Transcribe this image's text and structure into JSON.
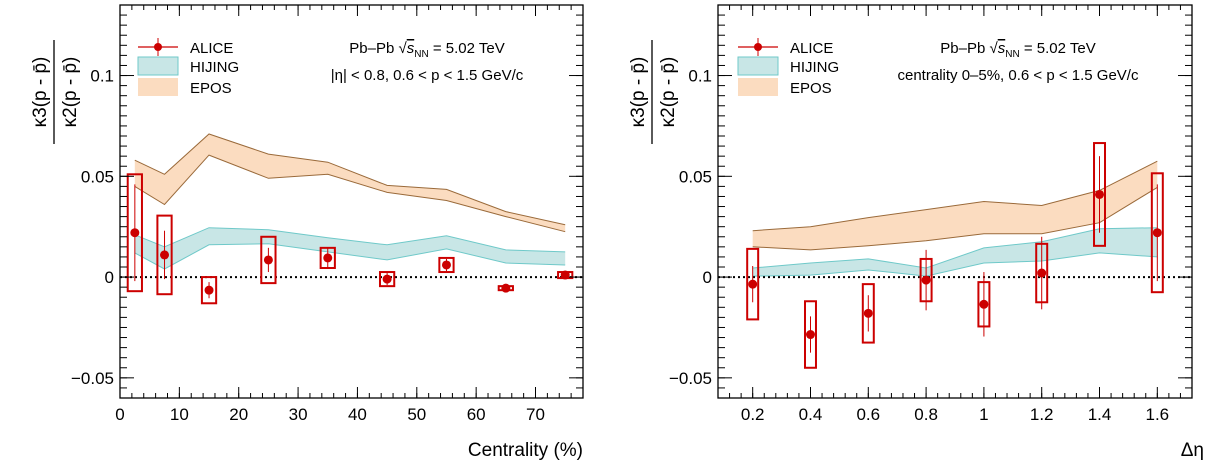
{
  "chart_data": [
    {
      "type": "scatter",
      "x_title": "Centrality (%)",
      "y_title": {
        "numerator": "κ3(p - p̄)",
        "denominator": "κ2(p - p̄)"
      },
      "xlim": [
        0,
        78
      ],
      "ylim": [
        -0.06,
        0.135
      ],
      "x_ticks": [
        0,
        10,
        20,
        30,
        40,
        50,
        60,
        70
      ],
      "y_ticks": [
        {
          "v": -0.05,
          "label": "−0.05"
        },
        {
          "v": 0,
          "label": "0"
        },
        {
          "v": 0.05,
          "label": "0.05"
        },
        {
          "v": 0.1,
          "label": "0.1"
        }
      ],
      "annotations": {
        "system": "Pb–Pb",
        "energy": "√s_NN = 5.02 TeV",
        "cuts": "|η| < 0.8, 0.6 < p < 1.5 GeV/c"
      },
      "legend": {
        "alice": "ALICE",
        "hijing": "HIJING",
        "epos": "EPOS"
      },
      "series": [
        {
          "name": "ALICE",
          "x": [
            2.5,
            7.5,
            15,
            25,
            35,
            45,
            55,
            65,
            75
          ],
          "y": [
            0.022,
            0.011,
            -0.0065,
            0.0085,
            0.0095,
            -0.001,
            0.006,
            -0.0055,
            0.001
          ],
          "stat_err": [
            0.024,
            0.012,
            0.004,
            0.006,
            0.005,
            0.003,
            0.003,
            0.001,
            0.0015
          ],
          "syst_err": [
            0.029,
            0.0195,
            0.0065,
            0.0115,
            0.005,
            0.0035,
            0.0035,
            0.001,
            0.0015
          ],
          "box_half_width": [
            1.2,
            1.2,
            1.2,
            1.2,
            1.2,
            1.2,
            1.2,
            1.2,
            1.2
          ]
        },
        {
          "name": "HIJING",
          "x": [
            2.5,
            7.5,
            15,
            25,
            35,
            45,
            55,
            65,
            75
          ],
          "low": [
            0.012,
            0.004,
            0.016,
            0.0165,
            0.0125,
            0.0085,
            0.014,
            0.007,
            0.006
          ],
          "high": [
            0.021,
            0.015,
            0.0245,
            0.0235,
            0.0195,
            0.016,
            0.0205,
            0.0135,
            0.0125
          ]
        },
        {
          "name": "EPOS",
          "x": [
            2.5,
            7.5,
            15,
            25,
            35,
            45,
            55,
            65,
            75
          ],
          "low": [
            0.045,
            0.036,
            0.0605,
            0.049,
            0.051,
            0.042,
            0.038,
            0.03,
            0.0225
          ],
          "high": [
            0.058,
            0.051,
            0.071,
            0.061,
            0.057,
            0.0455,
            0.0435,
            0.0325,
            0.026
          ]
        }
      ]
    },
    {
      "type": "scatter",
      "x_title": "Δη",
      "y_title": {
        "numerator": "κ3(p - p̄)",
        "denominator": "κ2(p - p̄)"
      },
      "xlim": [
        0.08,
        1.72
      ],
      "ylim": [
        -0.06,
        0.135
      ],
      "x_ticks": [
        0.2,
        0.4,
        0.6,
        0.8,
        1,
        1.2,
        1.4,
        1.6
      ],
      "y_ticks": [
        {
          "v": -0.05,
          "label": "−0.05"
        },
        {
          "v": 0,
          "label": "0"
        },
        {
          "v": 0.05,
          "label": "0.05"
        },
        {
          "v": 0.1,
          "label": "0.1"
        }
      ],
      "annotations": {
        "system": "Pb–Pb",
        "energy": "√s_NN = 5.02 TeV",
        "cuts": "centrality 0–5%, 0.6 < p < 1.5 GeV/c"
      },
      "legend": {
        "alice": "ALICE",
        "hijing": "HIJING",
        "epos": "EPOS"
      },
      "series": [
        {
          "name": "ALICE",
          "x": [
            0.2,
            0.4,
            0.6,
            0.8,
            1.0,
            1.2,
            1.4,
            1.6
          ],
          "y": [
            -0.0035,
            -0.0285,
            -0.018,
            -0.0015,
            -0.0135,
            0.002,
            0.041,
            0.022
          ],
          "stat_err": [
            0.009,
            0.009,
            0.009,
            0.015,
            0.016,
            0.018,
            0.019,
            0.024
          ],
          "syst_err": [
            0.0175,
            0.0165,
            0.0145,
            0.0105,
            0.011,
            0.0145,
            0.0255,
            0.0295
          ],
          "box_half_width": [
            0.019,
            0.019,
            0.019,
            0.019,
            0.019,
            0.019,
            0.019,
            0.019
          ]
        },
        {
          "name": "HIJING",
          "x": [
            0.2,
            0.4,
            0.6,
            0.8,
            1.0,
            1.2,
            1.4,
            1.6
          ],
          "low": [
            0.0005,
            0.001,
            0.0035,
            0.0005,
            0.007,
            0.008,
            0.012,
            0.01
          ],
          "high": [
            0.0045,
            0.007,
            0.009,
            0.0045,
            0.0145,
            0.0175,
            0.024,
            0.0245
          ]
        },
        {
          "name": "EPOS",
          "x": [
            0.2,
            0.4,
            0.6,
            0.8,
            1.0,
            1.2,
            1.4,
            1.6
          ],
          "low": [
            0.015,
            0.0135,
            0.0155,
            0.018,
            0.0215,
            0.0215,
            0.027,
            0.0445
          ],
          "high": [
            0.023,
            0.025,
            0.0295,
            0.0335,
            0.0375,
            0.0355,
            0.043,
            0.0575
          ]
        }
      ]
    }
  ],
  "colors": {
    "alice": "#cc0000",
    "hijing_fill": "#c8e6e6",
    "hijing_line": "#6fc9c9",
    "epos_fill": "#fbdcc0",
    "epos_line": "#9a6a3a"
  }
}
